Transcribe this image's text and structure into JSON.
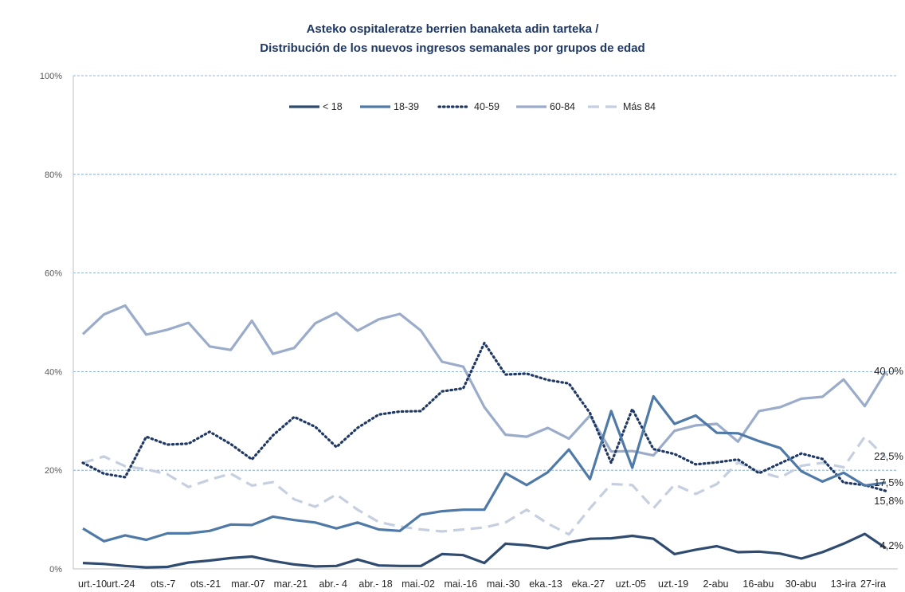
{
  "chart_data": {
    "type": "line",
    "title": "Asteko ospitaleratze berrien banaketa adin tarteka /",
    "subtitle": "Distribución de los nuevos ingresos semanales por grupos de edad",
    "xlabel": "",
    "ylabel": "",
    "ylim": [
      0,
      100
    ],
    "y_ticks": [
      "0%",
      "20%",
      "40%",
      "60%",
      "80%",
      "100%"
    ],
    "x_tick_labels": [
      "urt.-10",
      "urt.-24",
      "ots.-7",
      "ots.-21",
      "mar.-07",
      "mar.-21",
      "abr.- 4",
      "abr.- 18",
      "mai.-02",
      "mai.-16",
      "mai.-30",
      "eka.-13",
      "eka.-27",
      "uzt.-05",
      "uzt.-19",
      "2-abu",
      "16-abu",
      "30-abu",
      "13-ira",
      "27-ira"
    ],
    "grid": true,
    "legend_position": "top",
    "series": [
      {
        "name": "< 18",
        "color": "#2f4b70",
        "dash": "solid",
        "width": 3.2,
        "values": [
          1.2,
          1.0,
          0.6,
          0.3,
          0.4,
          1.3,
          1.7,
          2.2,
          2.5,
          1.6,
          0.9,
          0.5,
          0.6,
          1.9,
          0.7,
          0.6,
          0.6,
          3.0,
          2.8,
          1.2,
          5.1,
          4.8,
          4.2,
          5.4,
          6.1,
          6.2,
          6.7,
          6.1,
          3.0,
          3.9,
          4.6,
          3.4,
          3.5,
          3.1,
          2.1,
          3.4,
          5.1,
          7.1,
          4.2
        ]
      },
      {
        "name": "18-39",
        "color": "#4f79a7",
        "dash": "solid",
        "width": 3.2,
        "values": [
          8.2,
          5.6,
          6.8,
          5.9,
          7.2,
          7.2,
          7.7,
          9.0,
          8.9,
          10.6,
          9.9,
          9.4,
          8.2,
          9.4,
          8.0,
          7.7,
          11.0,
          11.7,
          12.0,
          12.0,
          19.4,
          17.0,
          19.6,
          24.2,
          18.2,
          32.0,
          20.5,
          35.0,
          29.4,
          31.1,
          27.6,
          27.5,
          25.9,
          24.5,
          19.8,
          17.7,
          19.5,
          16.9,
          17.5
        ]
      },
      {
        "name": "40-59",
        "color": "#1f3864",
        "dash": "dotted",
        "width": 3.2,
        "values": [
          21.5,
          19.3,
          18.6,
          26.8,
          25.2,
          25.4,
          27.8,
          25.3,
          22.2,
          27.1,
          30.8,
          28.8,
          24.7,
          28.6,
          31.3,
          31.9,
          32.0,
          36.0,
          36.6,
          45.8,
          39.4,
          39.6,
          38.3,
          37.6,
          31.6,
          21.5,
          32.4,
          24.3,
          23.3,
          21.2,
          21.6,
          22.2,
          19.4,
          21.4,
          23.4,
          22.3,
          17.5,
          17.0,
          15.8
        ]
      },
      {
        "name": "60-84",
        "color": "#9aacc9",
        "dash": "solid",
        "width": 3.2,
        "values": [
          47.6,
          51.6,
          53.4,
          47.5,
          48.5,
          49.9,
          45.1,
          44.4,
          50.3,
          43.6,
          44.8,
          49.8,
          51.9,
          48.3,
          50.6,
          51.7,
          48.3,
          42.0,
          41.0,
          32.8,
          27.2,
          26.8,
          28.6,
          26.4,
          31.1,
          23.8,
          23.9,
          23.0,
          28.0,
          29.1,
          29.4,
          25.8,
          32.0,
          32.8,
          34.5,
          34.9,
          38.4,
          33.0,
          40.0
        ]
      },
      {
        "name": "Más 84",
        "color": "#c5cfe0",
        "dash": "dashed",
        "width": 3.2,
        "values": [
          21.5,
          22.8,
          20.8,
          20.2,
          19.2,
          16.6,
          18.1,
          19.3,
          16.9,
          17.6,
          14.1,
          12.6,
          15.1,
          12.0,
          9.5,
          8.6,
          8.0,
          7.6,
          8.0,
          8.4,
          9.4,
          12.0,
          9.2,
          7.0,
          12.3,
          17.2,
          17.0,
          12.3,
          17.1,
          15.2,
          17.2,
          21.6,
          19.7,
          18.5,
          20.9,
          21.5,
          20.6,
          26.8,
          22.5
        ]
      }
    ],
    "end_labels": [
      "4,2%",
      "17,5%",
      "15,8%",
      "40,0%",
      "22,5%"
    ]
  }
}
